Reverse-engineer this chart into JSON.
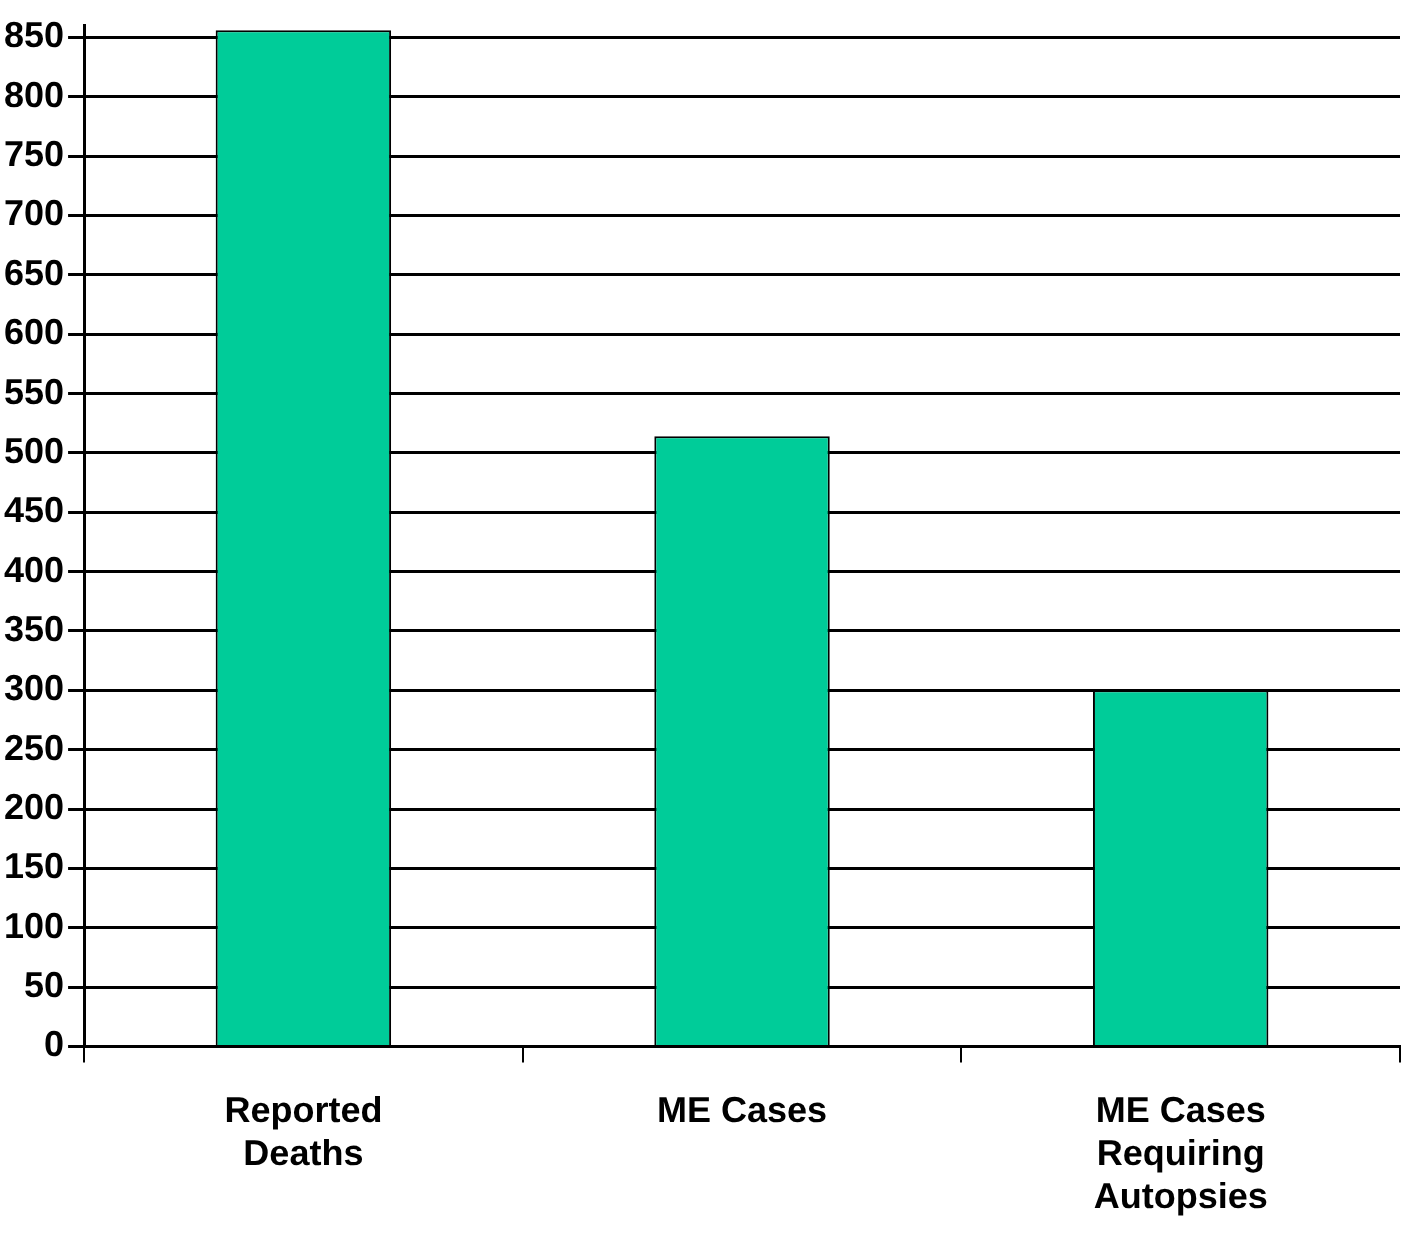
{
  "chart_data": {
    "type": "bar",
    "categories": [
      "Reported Deaths",
      "ME Cases",
      "ME Cases Requiring Autopsies"
    ],
    "values": [
      856,
      514,
      300
    ],
    "color": "#00cc99",
    "ylim": [
      0,
      860
    ],
    "yticks": [
      0,
      50,
      100,
      150,
      200,
      250,
      300,
      350,
      400,
      450,
      500,
      550,
      600,
      650,
      700,
      750,
      800,
      850
    ],
    "grid": "y"
  }
}
